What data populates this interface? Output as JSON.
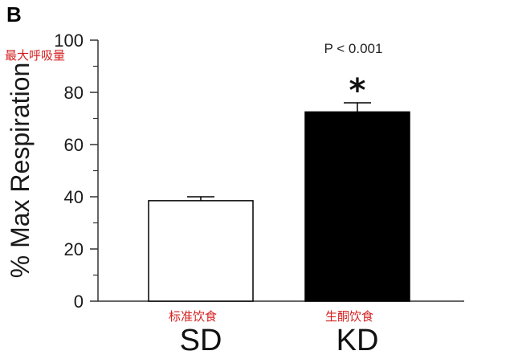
{
  "chart_data": {
    "type": "bar",
    "panel_label": "B",
    "categories": [
      "SD",
      "KD"
    ],
    "category_notes": [
      "标准饮食",
      "生酮饮食"
    ],
    "values": [
      38.5,
      72.5
    ],
    "errors": [
      1.5,
      3.5
    ],
    "bar_colors": [
      "#ffffff",
      "#000000"
    ],
    "edge_color": "#000000",
    "ylabel": "% Max Respiration",
    "ylabel_note": "最大呼吸量",
    "ylim": [
      0,
      100
    ],
    "yticks": [
      "0",
      "20",
      "40",
      "60",
      "80",
      "100"
    ],
    "significance": {
      "text": "P < 0.001",
      "marker": "*",
      "category": "KD"
    },
    "note_color": "#d42020"
  }
}
